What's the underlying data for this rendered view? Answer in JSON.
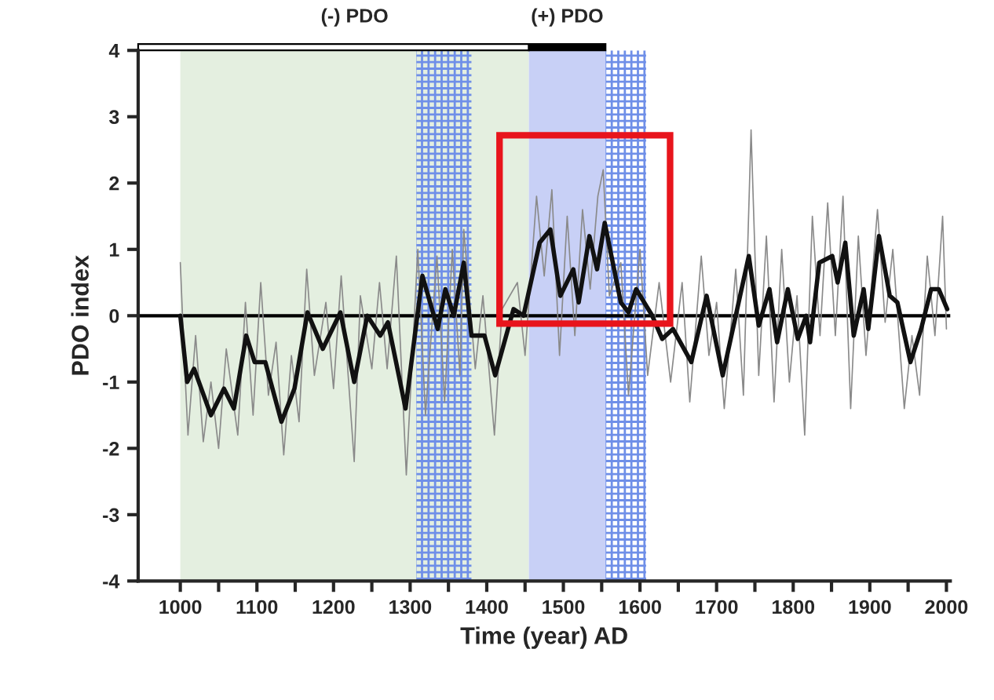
{
  "chart_data": {
    "type": "line",
    "xlabel": "Time (year) AD",
    "ylabel": "PDO index",
    "xlim": [
      945,
      2005
    ],
    "ylim": [
      -4,
      4
    ],
    "xticks": [
      1000,
      {
        "value": 1050,
        "label": null
      },
      1100,
      {
        "value": 1150,
        "label": null
      },
      1200,
      {
        "value": 1250,
        "label": null
      },
      1300,
      {
        "value": 1350,
        "label": null
      },
      1400,
      {
        "value": 1450,
        "label": null
      },
      1500,
      {
        "value": 1550,
        "label": null
      },
      1600,
      {
        "value": 1650,
        "label": null
      },
      1700,
      {
        "value": 1750,
        "label": null
      },
      1800,
      {
        "value": 1850,
        "label": null
      },
      1900,
      {
        "value": 1950,
        "label": null
      },
      2000
    ],
    "yticks": [
      -4,
      -3,
      -2,
      -1,
      0,
      1,
      2,
      3,
      4
    ],
    "grid": false,
    "ref_lines": [
      {
        "axis": "y",
        "value": 0,
        "color": "#000000"
      }
    ],
    "bands": [
      {
        "axis": "x",
        "from": 1000,
        "to": 1455,
        "label": "(-) PDO",
        "color": "#e4efe0"
      },
      {
        "axis": "x",
        "from": 1455,
        "to": 1555,
        "label": "(+) PDO",
        "color": "#c8d0f6"
      },
      {
        "axis": "x",
        "from": 1308,
        "to": 1380,
        "color": "#6f8fe8"
      },
      {
        "axis": "x",
        "from": 1555,
        "to": 1608,
        "color": "#6f8fe8"
      }
    ],
    "series": [
      {
        "color": "#8a8a8a",
        "x": [
          1000,
          1005,
          1010,
          1020,
          1030,
          1040,
          1050,
          1060,
          1075,
          1085,
          1095,
          1105,
          1115,
          1125,
          1135,
          1145,
          1155,
          1165,
          1175,
          1190,
          1200,
          1210,
          1227,
          1235,
          1250,
          1260,
          1270,
          1282,
          1295,
          1310,
          1320,
          1335,
          1345,
          1355,
          1365,
          1370,
          1385,
          1395,
          1410,
          1420,
          1440,
          1450,
          1465,
          1475,
          1485,
          1495,
          1505,
          1515,
          1525,
          1535,
          1545,
          1552,
          1560,
          1575,
          1585,
          1600,
          1610,
          1625,
          1640,
          1655,
          1665,
          1680,
          1690,
          1700,
          1710,
          1725,
          1735,
          1745,
          1755,
          1765,
          1775,
          1785,
          1795,
          1805,
          1815,
          1825,
          1835,
          1845,
          1855,
          1865,
          1875,
          1885,
          1895,
          1910,
          1920,
          1930,
          1945,
          1955,
          1965,
          1975,
          1985,
          1995,
          2000
        ],
        "values": [
          0.8,
          -0.6,
          -1.8,
          -0.3,
          -1.9,
          -1.0,
          -2.0,
          -0.5,
          -1.8,
          0.2,
          -1.5,
          0.5,
          -1.2,
          -0.4,
          -2.1,
          -0.6,
          -1.6,
          0.7,
          -0.9,
          0.2,
          -1.1,
          0.6,
          -2.2,
          0.3,
          -0.8,
          0.5,
          -0.8,
          0.9,
          -2.4,
          1.0,
          -1.5,
          0.9,
          -1.3,
          1.0,
          -0.9,
          1.3,
          -0.8,
          0.3,
          -1.8,
          0.1,
          0.5,
          -0.6,
          1.8,
          0.6,
          1.9,
          -0.6,
          1.5,
          -0.3,
          1.6,
          0.4,
          1.8,
          2.2,
          0.3,
          0.8,
          -1.2,
          1.0,
          -0.9,
          0.5,
          -1.0,
          0.5,
          -1.3,
          0.9,
          -0.6,
          0.2,
          -1.4,
          0.7,
          -1.2,
          2.8,
          -0.9,
          1.2,
          -1.3,
          1.0,
          -1.0,
          0.3,
          -1.8,
          1.5,
          -0.3,
          1.7,
          -0.3,
          1.8,
          -1.4,
          1.2,
          -0.6,
          1.6,
          -0.1,
          1.0,
          -1.4,
          -0.3,
          -1.2,
          0.9,
          -0.3,
          1.5,
          -0.2
        ]
      },
      {
        "color": "#111111",
        "x": [
          1000,
          1009,
          1018,
          1040,
          1057,
          1070,
          1086,
          1097,
          1111,
          1132,
          1149,
          1166,
          1186,
          1209,
          1227,
          1244,
          1261,
          1271,
          1294,
          1316,
          1336,
          1346,
          1357,
          1370,
          1380,
          1397,
          1411,
          1435,
          1448,
          1469,
          1483,
          1496,
          1513,
          1520,
          1534,
          1544,
          1554,
          1575,
          1585,
          1595,
          1616,
          1629,
          1643,
          1667,
          1687,
          1708,
          1725,
          1742,
          1755,
          1769,
          1779,
          1793,
          1806,
          1817,
          1822,
          1834,
          1851,
          1858,
          1868,
          1879,
          1892,
          1898,
          1912,
          1926,
          1936,
          1953,
          1967,
          1980,
          1990,
          2001
        ],
        "values": [
          0.0,
          -1.0,
          -0.8,
          -1.5,
          -1.1,
          -1.4,
          -0.3,
          -0.7,
          -0.7,
          -1.6,
          -1.1,
          0.05,
          -0.5,
          0.05,
          -1.0,
          0.0,
          -0.3,
          -0.1,
          -1.4,
          0.6,
          -0.2,
          0.4,
          0.0,
          0.8,
          -0.3,
          -0.3,
          -0.9,
          0.1,
          0.0,
          1.1,
          1.3,
          0.3,
          0.7,
          0.2,
          1.2,
          0.7,
          1.4,
          0.2,
          0.05,
          0.4,
          0.0,
          -0.35,
          -0.2,
          -0.7,
          0.3,
          -0.9,
          0.0,
          0.9,
          -0.15,
          0.4,
          -0.4,
          0.4,
          -0.35,
          0.0,
          -0.4,
          0.8,
          0.9,
          0.5,
          1.1,
          -0.3,
          0.4,
          -0.2,
          1.2,
          0.3,
          0.2,
          -0.7,
          -0.2,
          0.4,
          0.4,
          0.1
        ]
      }
    ]
  }
}
